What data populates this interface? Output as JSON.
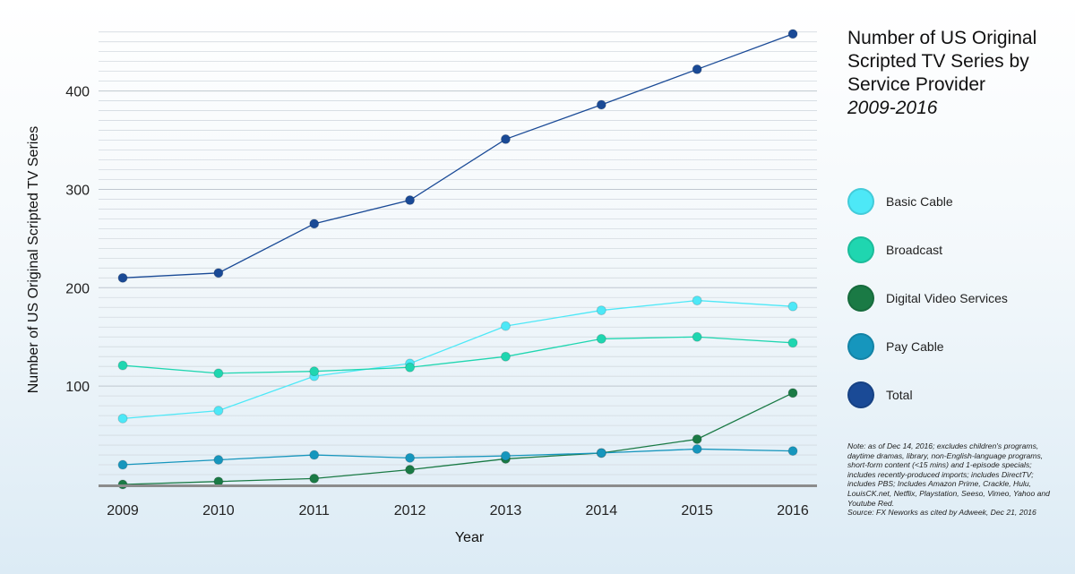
{
  "title": {
    "main": "Number of US Original Scripted TV Series by Service Provider",
    "sub": "2009-2016"
  },
  "note": {
    "text": "Note: as of Dec 14, 2016; excludes children's programs, daytime dramas, library, non-English-language programs, short-form content (<15 mins) and 1-episode specials; includes recently-produced imports; includes DirectTV; includes PBS; Includes Amazon Prime, Crackle, Hulu, LouisCK.net, Netflix, Playstation, Seeso, Vimeo, Yahoo and Youtube Red.",
    "source": "Source: FX Neworks as cited by Adweek, Dec 21, 2016"
  },
  "chart_data": {
    "type": "line",
    "xlabel": "Year",
    "ylabel": "Number of US Original Scripted TV Series",
    "x": [
      "2009",
      "2010",
      "2011",
      "2012",
      "2013",
      "2014",
      "2015",
      "2016"
    ],
    "ylim": [
      0,
      460
    ],
    "yticks": [
      100,
      200,
      300,
      400
    ],
    "grid": true,
    "legend_position": "right",
    "series": [
      {
        "name": "Basic Cable",
        "color": "#4de8f7",
        "values": [
          67,
          75,
          110,
          123,
          161,
          177,
          187,
          181
        ]
      },
      {
        "name": "Broadcast",
        "color": "#1fd6b0",
        "values": [
          121,
          113,
          115,
          119,
          130,
          148,
          150,
          144
        ]
      },
      {
        "name": "Digital Video Services",
        "color": "#1a7a45",
        "values": [
          0,
          3,
          6,
          15,
          26,
          32,
          46,
          93
        ]
      },
      {
        "name": "Pay Cable",
        "color": "#1696bd",
        "values": [
          20,
          25,
          30,
          27,
          29,
          32,
          36,
          34
        ]
      },
      {
        "name": "Total",
        "color": "#1a4a96",
        "values": [
          210,
          215,
          265,
          289,
          351,
          386,
          422,
          458
        ]
      }
    ]
  }
}
